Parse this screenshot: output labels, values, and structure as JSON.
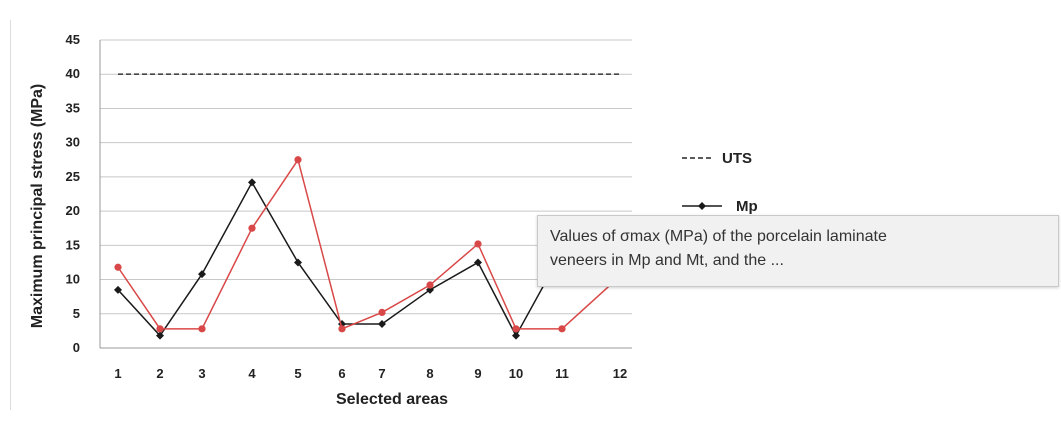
{
  "chart_data": {
    "type": "line",
    "title": "",
    "xlabel": "Selected areas",
    "ylabel": "Maximum principal stress (MPa)",
    "categories": [
      "1",
      "2",
      "3",
      "4",
      "5",
      "6",
      "7",
      "8",
      "9",
      "10",
      "11",
      "12"
    ],
    "yticks": [
      "0",
      "5",
      "10",
      "15",
      "20",
      "25",
      "30",
      "35",
      "40",
      "45"
    ],
    "ylim": [
      0,
      45
    ],
    "grid": true,
    "legend_placement": "right",
    "series": [
      {
        "name": "UTS",
        "style": "dashed",
        "color": "#444444",
        "values": [
          40,
          40,
          40,
          40,
          40,
          40,
          40,
          40,
          40,
          40,
          40,
          40
        ]
      },
      {
        "name": "Mp",
        "style": "solid-diamond",
        "color": "#1a1a1a",
        "values": [
          8.5,
          1.8,
          10.8,
          24.2,
          12.5,
          3.5,
          3.5,
          8.5,
          12.5,
          1.8,
          14,
          null
        ]
      },
      {
        "name": "",
        "style": "solid-circle",
        "color": "#d94848",
        "values": [
          11.8,
          2.8,
          2.8,
          17.5,
          27.5,
          2.8,
          5.2,
          9.2,
          15.2,
          2.8,
          2.8,
          10.5
        ]
      }
    ]
  },
  "tooltip": {
    "line1": "Values of σmax (MPa) of the porcelain laminate",
    "line2": "veneers in Mp and Mt, and the ..."
  }
}
